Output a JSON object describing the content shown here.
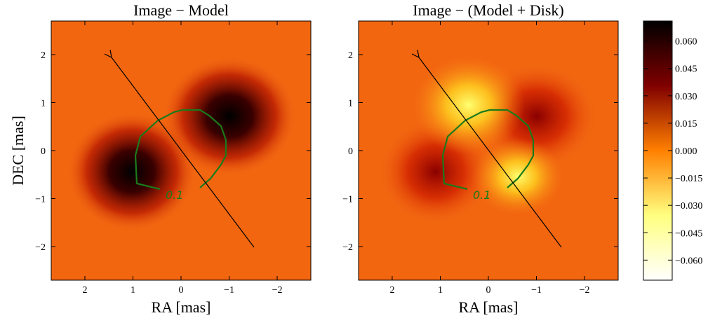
{
  "chart_data": [
    {
      "type": "heatmap",
      "title": "Image − Model",
      "xlabel": "RA [mas]",
      "ylabel": "DEC [mas]",
      "xlim": [
        2.7,
        -2.7
      ],
      "ylim": [
        -2.7,
        2.7
      ],
      "xticks": [
        2,
        1,
        0,
        {
          "value": -1,
          "label": "−1"
        },
        {
          "value": -2,
          "label": "−2"
        }
      ],
      "yticks": [
        {
          "value": -2,
          "label": "−2"
        },
        {
          "value": -1,
          "label": "−1"
        },
        0,
        1,
        2
      ],
      "contour_label": 0.1
    },
    {
      "type": "heatmap",
      "title": "Image − (Model + Disk)",
      "xlabel": "RA [mas]",
      "xlim": [
        2.7,
        -2.7
      ],
      "ylim": [
        -2.7,
        2.7
      ],
      "xticks": [
        2,
        1,
        0,
        {
          "value": -1,
          "label": "−1"
        },
        {
          "value": -2,
          "label": "−2"
        }
      ],
      "yticks": [
        {
          "value": -2,
          "label": "−2"
        },
        {
          "value": -1,
          "label": "−1"
        },
        0,
        1,
        2
      ],
      "contour_label": 0.1
    }
  ],
  "colorbar": {
    "lim": [
      -0.071,
      0.071
    ],
    "colors": [
      "#000000",
      "#800000",
      "#ff8000",
      "#ffff80",
      "#ffffff"
    ],
    "ticks": [
      {
        "value": -0.06,
        "label": "−0.060"
      },
      {
        "value": -0.045,
        "label": "−0.045"
      },
      {
        "value": -0.03,
        "label": "−0.030"
      },
      {
        "value": -0.015,
        "label": "−0.015"
      },
      {
        "value": 0,
        "label": "0.000"
      },
      {
        "value": 0.015,
        "label": "0.015"
      },
      {
        "value": 0.03,
        "label": "0.030"
      },
      {
        "value": 0.045,
        "label": "0.045"
      },
      {
        "value": 0.06,
        "label": "0.060"
      }
    ]
  }
}
